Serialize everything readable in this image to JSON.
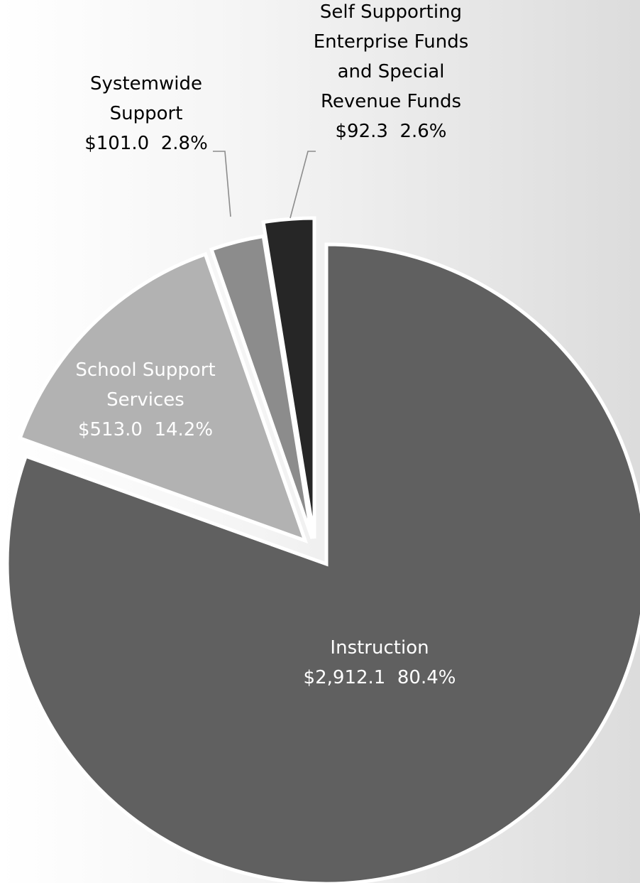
{
  "chart_data": {
    "type": "pie",
    "units": "$",
    "start_angle_deg": 0,
    "direction": "clockwise",
    "slices": [
      {
        "name": "Instruction",
        "label_lines": [
          "Instruction"
        ],
        "value_text": "$2,912.1",
        "value": 2912.1,
        "percent_text": "80.4%",
        "percent": 80.4,
        "color": "#606060",
        "label_color": "#ffffff",
        "exploded": true
      },
      {
        "name": "School Support Services",
        "label_lines": [
          "School Support",
          "Services"
        ],
        "value_text": "$513.0",
        "value": 513.0,
        "percent_text": "14.2%",
        "percent": 14.2,
        "color": "#b2b2b2",
        "label_color": "#ffffff",
        "exploded": true
      },
      {
        "name": "Systemwide Support",
        "label_lines": [
          "Systemwide",
          "Support"
        ],
        "value_text": "$101.0",
        "value": 101.0,
        "percent_text": "2.8%",
        "percent": 2.8,
        "color": "#8c8c8c",
        "label_color": "#000000",
        "exploded": false
      },
      {
        "name": "Self Supporting Enterprise Funds and Special Revenue Funds",
        "label_lines": [
          "Self Supporting",
          "Enterprise Funds",
          "and Special",
          "Revenue Funds"
        ],
        "value_text": "$92.3",
        "value": 92.3,
        "percent_text": "2.6%",
        "percent": 2.6,
        "color": "#262626",
        "label_color": "#000000",
        "exploded": false
      }
    ]
  }
}
